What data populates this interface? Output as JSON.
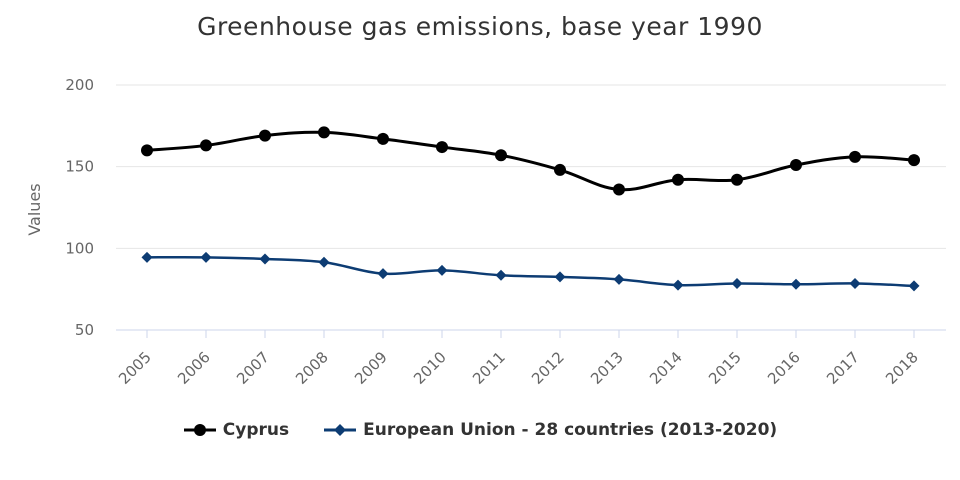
{
  "chart_data": {
    "type": "line",
    "title": "Greenhouse gas emissions, base year 1990",
    "ylabel": "Values",
    "xlabel": "",
    "ylim": [
      50,
      200
    ],
    "yticks": [
      50,
      100,
      150,
      200
    ],
    "grid": true,
    "legend_position": "bottom",
    "categories": [
      "2005",
      "2006",
      "2007",
      "2008",
      "2009",
      "2010",
      "2011",
      "2012",
      "2013",
      "2014",
      "2015",
      "2016",
      "2017",
      "2018"
    ],
    "series": [
      {
        "name": "Cyprus",
        "color": "#000000",
        "marker": "circle",
        "values": [
          160,
          163,
          169,
          171,
          167,
          162,
          157,
          148,
          136,
          142,
          142,
          151,
          156,
          154
        ]
      },
      {
        "name": "European Union - 28 countries (2013-2020)",
        "color": "#0d3c73",
        "marker": "diamond",
        "values": [
          94.5,
          94.5,
          93.5,
          91.5,
          84.5,
          86.5,
          83.5,
          82.5,
          81,
          77.5,
          78.5,
          78,
          78.5,
          77
        ]
      }
    ]
  }
}
